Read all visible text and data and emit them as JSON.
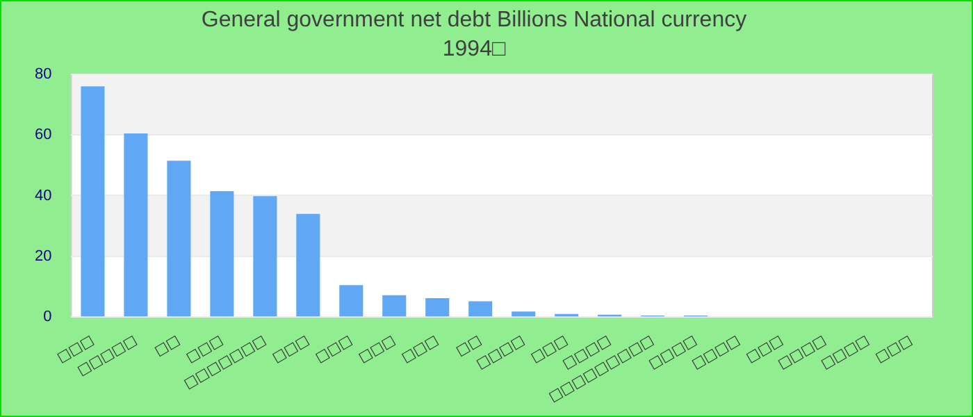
{
  "chart_data": {
    "type": "bar",
    "title": "General government net debt Billions National currency",
    "subtitle": "1994□",
    "categories": [
      "□□□",
      "□□□□□",
      "□□",
      "□□□",
      "□□□□□□□",
      "□□□",
      "□□□",
      "□□□",
      "□□□",
      "□□",
      "□□□□",
      "□□□",
      "□□□□",
      "□□□□□□□□□",
      "□□□□",
      "□□□□",
      "□□□",
      "□□□□",
      "□□□□",
      "□□□"
    ],
    "values": [
      76,
      60.5,
      51.5,
      41.5,
      39.8,
      34,
      10.5,
      7.2,
      6.2,
      5.2,
      1.8,
      1,
      0.8,
      0.5,
      0.5,
      0,
      0,
      0,
      0,
      0
    ],
    "color": "#60a8f4",
    "ylim": [
      0,
      80
    ],
    "yticks": [
      0,
      20,
      40,
      60,
      80
    ],
    "grid": true,
    "legend": false
  }
}
